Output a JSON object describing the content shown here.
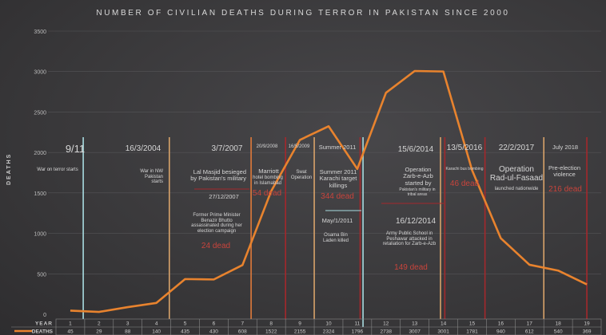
{
  "chart_data": {
    "type": "line",
    "title": "NUMBER OF CIVILIAN DEATHS DURING TERROR IN PAKISTAN SINCE 2000",
    "xlabel": "YEAR",
    "ylabel": "DEATHS",
    "ylim": [
      0,
      3500
    ],
    "yticks": [
      0,
      500,
      1000,
      1500,
      2000,
      2500,
      3000,
      3500
    ],
    "x": [
      1,
      2,
      3,
      4,
      5,
      6,
      7,
      8,
      9,
      10,
      11,
      12,
      13,
      14,
      15,
      16,
      17,
      18,
      19
    ],
    "series": [
      {
        "name": "DEATHS",
        "color": "#e8832e",
        "values": [
          45,
          29,
          88,
          140,
          435,
          430,
          608,
          1522,
          2155,
          2324,
          1796,
          2738,
          3007,
          3001,
          1781,
          940,
          612,
          540,
          369
        ]
      }
    ],
    "grid": true,
    "legend": "bottom-left",
    "table_labels": {
      "year": "YEAR",
      "deaths": "DEATHS"
    },
    "events": [
      {
        "date": "9/11",
        "text": "War on terror starts",
        "line_x": 1.45,
        "color": "#a8dbe0"
      },
      {
        "date": "16/3/2004",
        "text": "War in NW Pakistan starts",
        "line_x": 4.45,
        "color": "#d8a36a"
      },
      {
        "date": "3/7/2007",
        "text": "Lal Masjid besieged by Pakistan's military",
        "line_x": 7.3,
        "color": "#e07a3a"
      },
      {
        "date": "27/12/2007",
        "text": "Former Prime Minister Benazir Bhutto assassinated during her election campaign",
        "dead": "24 dead"
      },
      {
        "date": "20/9/2008",
        "title": "Marriott",
        "text": "hotel bombing in Islamabad",
        "dead": "54 dead",
        "line_x": 8.5,
        "color": "#a4282c"
      },
      {
        "date": "16/5/2009",
        "text": "Swat Operation",
        "line_x": 9.5,
        "color": "#d8a36a"
      },
      {
        "date": "Summer 2011",
        "text": "Summer 2011 Karachi target killings",
        "dead": "344 dead",
        "line_x": 11.1,
        "color": "#a4282c"
      },
      {
        "date": "May/1/2011",
        "text": "Osama Bin Laden killed",
        "line_x": 11.2,
        "color": "#a8dbe0"
      },
      {
        "date": "15/6/2014",
        "title": "Operation Zarb-e-Azb started by",
        "text": "Pakistan's military in tribal areas",
        "line_x": 13.9,
        "color": "#d8a36a"
      },
      {
        "date": "16/12/2014",
        "text": "Army Public School in Peshawar attacked in retaliation for Zarb-e-Azb",
        "dead": "149 dead",
        "line_x": 14.05,
        "color": "#a4282c"
      },
      {
        "date": "13/5/2016",
        "text": "Karachi bus bombing",
        "dead": "46 dead",
        "line_x": 15.45,
        "color": "#a4282c"
      },
      {
        "date": "22/2/2017",
        "title": "Operation Rad-ul-Fasaad",
        "text": "launched nationwide",
        "line_x": 17.5,
        "color": "#d8a36a"
      },
      {
        "date": "July 2018",
        "text": "Pre-election violence",
        "dead": "216 dead",
        "line_x": 19,
        "color": "#a4282c"
      }
    ]
  }
}
